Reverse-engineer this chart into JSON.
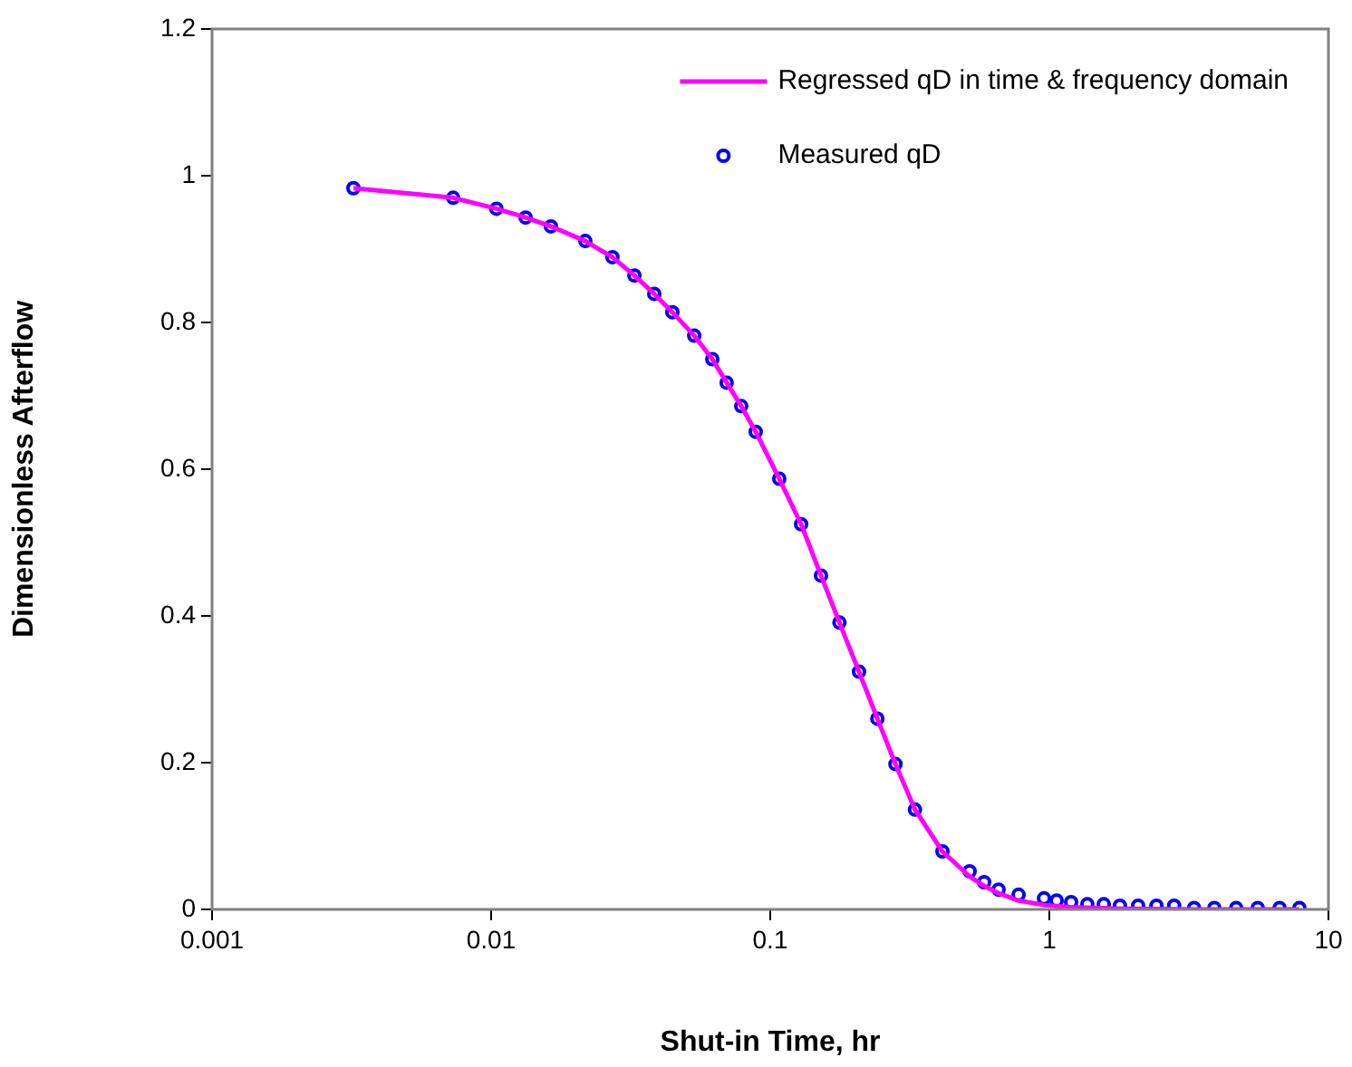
{
  "chart_data": {
    "type": "line",
    "xlabel": "Shut-in Time, hr",
    "ylabel": "Dimensionless Afterflow",
    "log": "x",
    "grid": false,
    "legend": "top right",
    "xlim": [
      0.001,
      10
    ],
    "xticks": [
      0.001,
      0.01,
      0.1,
      1,
      10
    ],
    "ylim": [
      0,
      1.2
    ],
    "yticks": [
      0,
      0.2,
      0.4,
      0.6,
      0.8,
      1,
      1.2
    ],
    "series": [
      {
        "name": "Regressed qD in time & frequency domain",
        "type": "line",
        "color": "#ff00ff",
        "marker": "none",
        "x": [
          0.00321,
          0.00731,
          0.01045,
          0.01329,
          0.01637,
          0.02175,
          0.0272,
          0.0326,
          0.0384,
          0.0446,
          0.0534,
          0.062,
          0.0698,
          0.0787,
          0.0887,
          0.1077,
          0.129,
          0.152,
          0.177,
          0.208,
          0.242,
          0.281,
          0.33,
          0.414,
          0.518,
          0.584,
          0.658,
          0.776,
          0.957,
          1.197,
          1.79,
          3.3,
          7.87
        ],
        "values": [
          0.983,
          0.97,
          0.955,
          0.943,
          0.931,
          0.911,
          0.889,
          0.864,
          0.839,
          0.814,
          0.782,
          0.75,
          0.718,
          0.686,
          0.651,
          0.587,
          0.525,
          0.455,
          0.391,
          0.324,
          0.26,
          0.198,
          0.136,
          0.079,
          0.045,
          0.032,
          0.022,
          0.012,
          0.006,
          0.003,
          0.001,
          0,
          0
        ]
      },
      {
        "name": "Measured qD",
        "type": "scatter",
        "color": "#0000ff",
        "marker": "circle",
        "x": [
          0.00321,
          0.00731,
          0.01045,
          0.01329,
          0.01637,
          0.02175,
          0.0272,
          0.0326,
          0.0384,
          0.0446,
          0.0534,
          0.062,
          0.0698,
          0.0787,
          0.0887,
          0.1077,
          0.129,
          0.152,
          0.177,
          0.208,
          0.242,
          0.281,
          0.33,
          0.414,
          0.518,
          0.584,
          0.658,
          0.776,
          0.957,
          1.062,
          1.197,
          1.368,
          1.567,
          1.79,
          2.08,
          2.42,
          2.8,
          3.3,
          3.9,
          4.67,
          5.58,
          6.68,
          7.87
        ],
        "values": [
          0.983,
          0.97,
          0.955,
          0.943,
          0.931,
          0.911,
          0.889,
          0.864,
          0.839,
          0.814,
          0.782,
          0.75,
          0.718,
          0.686,
          0.651,
          0.587,
          0.525,
          0.455,
          0.391,
          0.324,
          0.26,
          0.198,
          0.136,
          0.079,
          0.052,
          0.037,
          0.027,
          0.02,
          0.015,
          0.012,
          0.01,
          0.007,
          0.007,
          0.005,
          0.005,
          0.005,
          0.005,
          0.002,
          0.002,
          0.002,
          0.002,
          0.002,
          0.002
        ]
      }
    ]
  }
}
